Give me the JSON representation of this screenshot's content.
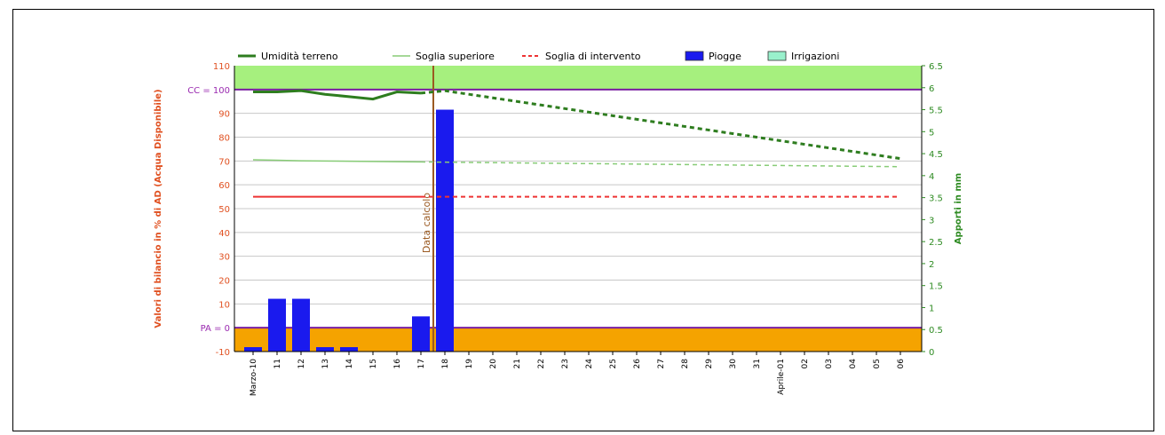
{
  "chart_data": {
    "type": "line",
    "legend": {
      "placement": "top",
      "entries": [
        {
          "label": "Umidità terreno",
          "color": "#2e7d1f",
          "style": "line"
        },
        {
          "label": "Soglia superiore",
          "color": "#88cc77",
          "style": "line"
        },
        {
          "label": "Soglia di intervento",
          "color": "#ee3333",
          "style": "dashed"
        },
        {
          "label": "Piogge",
          "color": "#1a1aee",
          "style": "bar"
        },
        {
          "label": "Irrigazioni",
          "color": "#99f0cc",
          "style": "bar"
        }
      ]
    },
    "y_left": {
      "label": "Valori di bilancio in % di AD (Acqua Disponibile)",
      "range": [
        -10,
        110
      ],
      "ticks": [
        "110",
        "100",
        "90",
        "80",
        "70",
        "60",
        "50",
        "40",
        "30",
        "20",
        "10",
        "0",
        "-10"
      ],
      "special_labels": [
        {
          "text": "CC = 100",
          "value": 100
        },
        {
          "text": "PA = 0",
          "value": 0
        }
      ]
    },
    "y_right": {
      "label": "Apporti in mm",
      "range": [
        0,
        6.5
      ],
      "ticks": [
        "6.5",
        "6",
        "5.5",
        "5",
        "4.5",
        "4",
        "3.5",
        "3",
        "2.5",
        "2",
        "1.5",
        "1",
        "0.5",
        "0"
      ]
    },
    "x_labels": [
      "Marzo-10",
      "11",
      "12",
      "13",
      "14",
      "15",
      "16",
      "17",
      "18",
      "19",
      "20",
      "21",
      "22",
      "23",
      "24",
      "25",
      "26",
      "27",
      "28",
      "29",
      "30",
      "31",
      "Aprile-01",
      "02",
      "03",
      "04",
      "05",
      "06"
    ],
    "calc_date_label": "Data calcolo",
    "calc_date_index": 7,
    "series": [
      {
        "name": "Umidità terreno",
        "observed": [
          99,
          99,
          99.5,
          98,
          97,
          96,
          99,
          98.5
        ],
        "forecast_start": 7,
        "forecast": [
          98.5,
          99.5,
          98,
          96.5,
          95,
          93.5,
          92,
          90.5,
          89,
          87.5,
          86,
          84.5,
          83,
          81.5,
          80,
          78.5,
          77,
          75.5,
          74,
          72.5,
          71
        ]
      },
      {
        "name": "Soglia superiore",
        "observed": [
          70.5,
          70.3,
          70.1,
          70,
          69.9,
          69.8,
          69.7,
          69.6
        ],
        "forecast_start": 7,
        "forecast": [
          69.6,
          69.5,
          69.4,
          69.3,
          69.2,
          69.1,
          69,
          68.9,
          68.8,
          68.7,
          68.6,
          68.5,
          68.4,
          68.3,
          68.2,
          68.1,
          68,
          67.9,
          67.8,
          67.7,
          67.6
        ]
      },
      {
        "name": "Soglia di intervento",
        "observed_value": 55,
        "observed_end": 7,
        "forecast_value": 55
      }
    ],
    "rain_bars": {
      "name": "Piogge",
      "indices": [
        0,
        1,
        2,
        3,
        4,
        7,
        8
      ],
      "values_mm": [
        0.1,
        1.2,
        1.2,
        0.1,
        0.1,
        0.8,
        5.5
      ]
    },
    "zones": {
      "upper_color": "#a6f07e",
      "lower_color": "#f5a300",
      "boundary_color": "#7a1fa0"
    }
  }
}
